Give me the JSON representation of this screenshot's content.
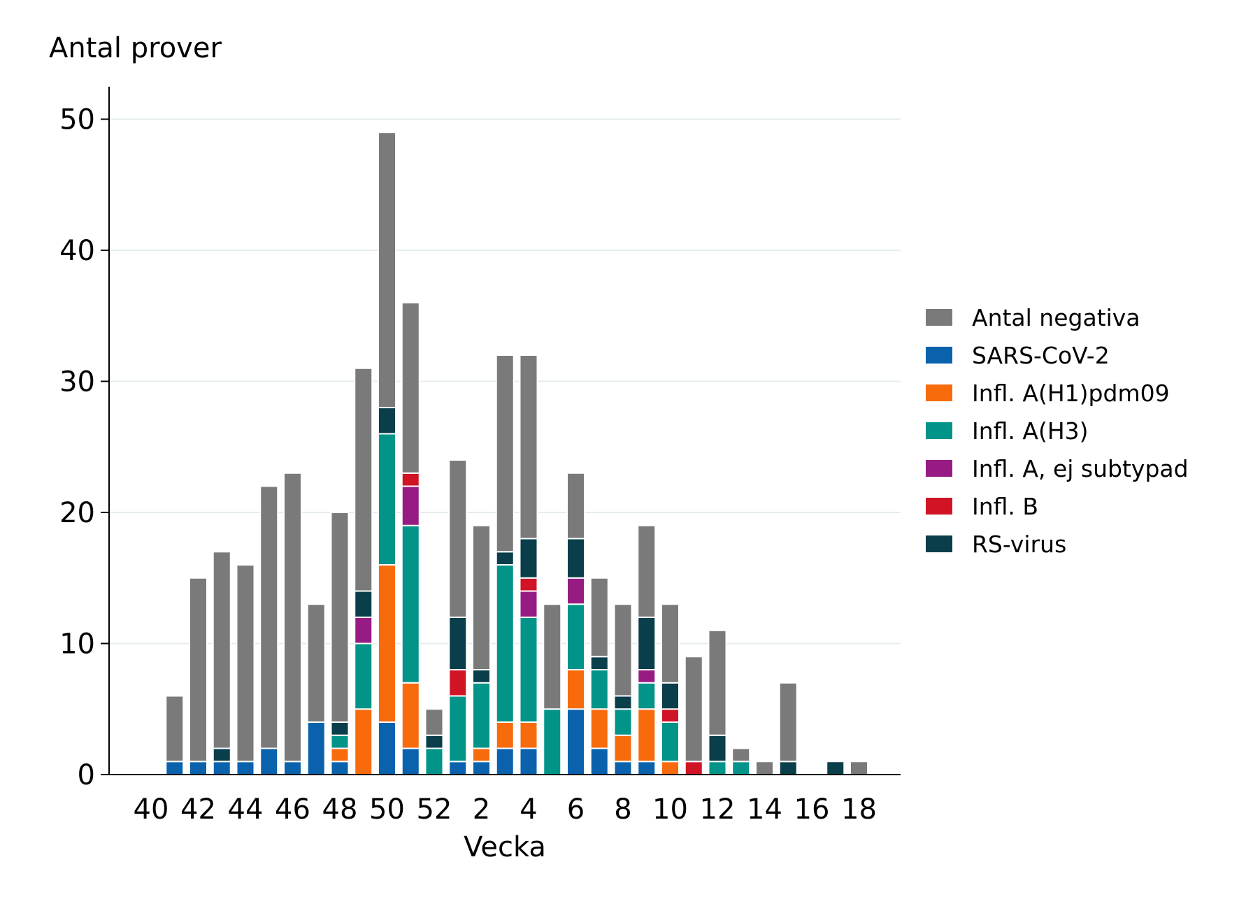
{
  "chart_data": {
    "type": "bar",
    "stacked": true,
    "ylabel": "Antal prover",
    "xlabel": "Vecka",
    "ylim": [
      0,
      52
    ],
    "yticks": [
      0,
      10,
      20,
      30,
      40,
      50
    ],
    "grid": true,
    "legend_position": "right",
    "categories": [
      "40",
      "41",
      "42",
      "43",
      "44",
      "45",
      "46",
      "47",
      "48",
      "49",
      "50",
      "51",
      "52",
      "1",
      "2",
      "3",
      "4",
      "5",
      "6",
      "7",
      "8",
      "9",
      "10",
      "11",
      "12",
      "13",
      "14",
      "15",
      "16",
      "17",
      "18"
    ],
    "xtick_labels": [
      "40",
      "42",
      "44",
      "46",
      "48",
      "50",
      "52",
      "2",
      "4",
      "6",
      "8",
      "10",
      "12",
      "14",
      "16",
      "18"
    ],
    "series": [
      {
        "name": "SARS-CoV-2",
        "color": "#0a62ad",
        "values": [
          0,
          1,
          1,
          1,
          1,
          2,
          1,
          4,
          1,
          0,
          4,
          2,
          0,
          1,
          1,
          2,
          2,
          0,
          5,
          2,
          1,
          1,
          0,
          0,
          0,
          0,
          0,
          0,
          0,
          0,
          0
        ]
      },
      {
        "name": "Infl. A(H1)pdm09",
        "color": "#f76b0d",
        "values": [
          0,
          0,
          0,
          0,
          0,
          0,
          0,
          0,
          1,
          5,
          12,
          5,
          0,
          0,
          1,
          2,
          2,
          0,
          3,
          3,
          2,
          4,
          1,
          0,
          0,
          0,
          0,
          0,
          0,
          0,
          0
        ]
      },
      {
        "name": "Infl. A(H3)",
        "color": "#029488",
        "values": [
          0,
          0,
          0,
          0,
          0,
          0,
          0,
          0,
          1,
          5,
          10,
          12,
          2,
          5,
          5,
          12,
          8,
          5,
          5,
          3,
          2,
          2,
          3,
          0,
          1,
          1,
          0,
          0,
          0,
          0,
          0
        ]
      },
      {
        "name": "Infl. A, ej subtypad",
        "color": "#961c84",
        "values": [
          0,
          0,
          0,
          0,
          0,
          0,
          0,
          0,
          0,
          2,
          0,
          3,
          0,
          0,
          0,
          0,
          2,
          0,
          2,
          0,
          0,
          1,
          0,
          0,
          0,
          0,
          0,
          0,
          0,
          0,
          0
        ]
      },
      {
        "name": "Infl. B",
        "color": "#d01426",
        "values": [
          0,
          0,
          0,
          0,
          0,
          0,
          0,
          0,
          0,
          0,
          0,
          1,
          0,
          2,
          0,
          0,
          1,
          0,
          0,
          0,
          0,
          0,
          1,
          1,
          0,
          0,
          0,
          0,
          0,
          0,
          0
        ]
      },
      {
        "name": "RS-virus",
        "color": "#093e4a",
        "values": [
          0,
          0,
          0,
          1,
          0,
          0,
          0,
          0,
          1,
          2,
          2,
          0,
          1,
          4,
          1,
          1,
          3,
          0,
          3,
          1,
          1,
          4,
          2,
          0,
          2,
          0,
          0,
          1,
          0,
          1,
          0
        ]
      },
      {
        "name": "Antal negativa",
        "color": "#7a7a7a",
        "values": [
          0,
          5,
          14,
          15,
          15,
          20,
          22,
          9,
          16,
          17,
          21,
          13,
          2,
          12,
          11,
          15,
          14,
          8,
          5,
          6,
          7,
          7,
          6,
          8,
          8,
          1,
          1,
          6,
          0,
          0,
          1
        ]
      }
    ],
    "legend_order": [
      "Antal negativa",
      "SARS-CoV-2",
      "Infl. A(H1)pdm09",
      "Infl. A(H3)",
      "Infl. A, ej subtypad",
      "Infl. B",
      "RS-virus"
    ]
  }
}
